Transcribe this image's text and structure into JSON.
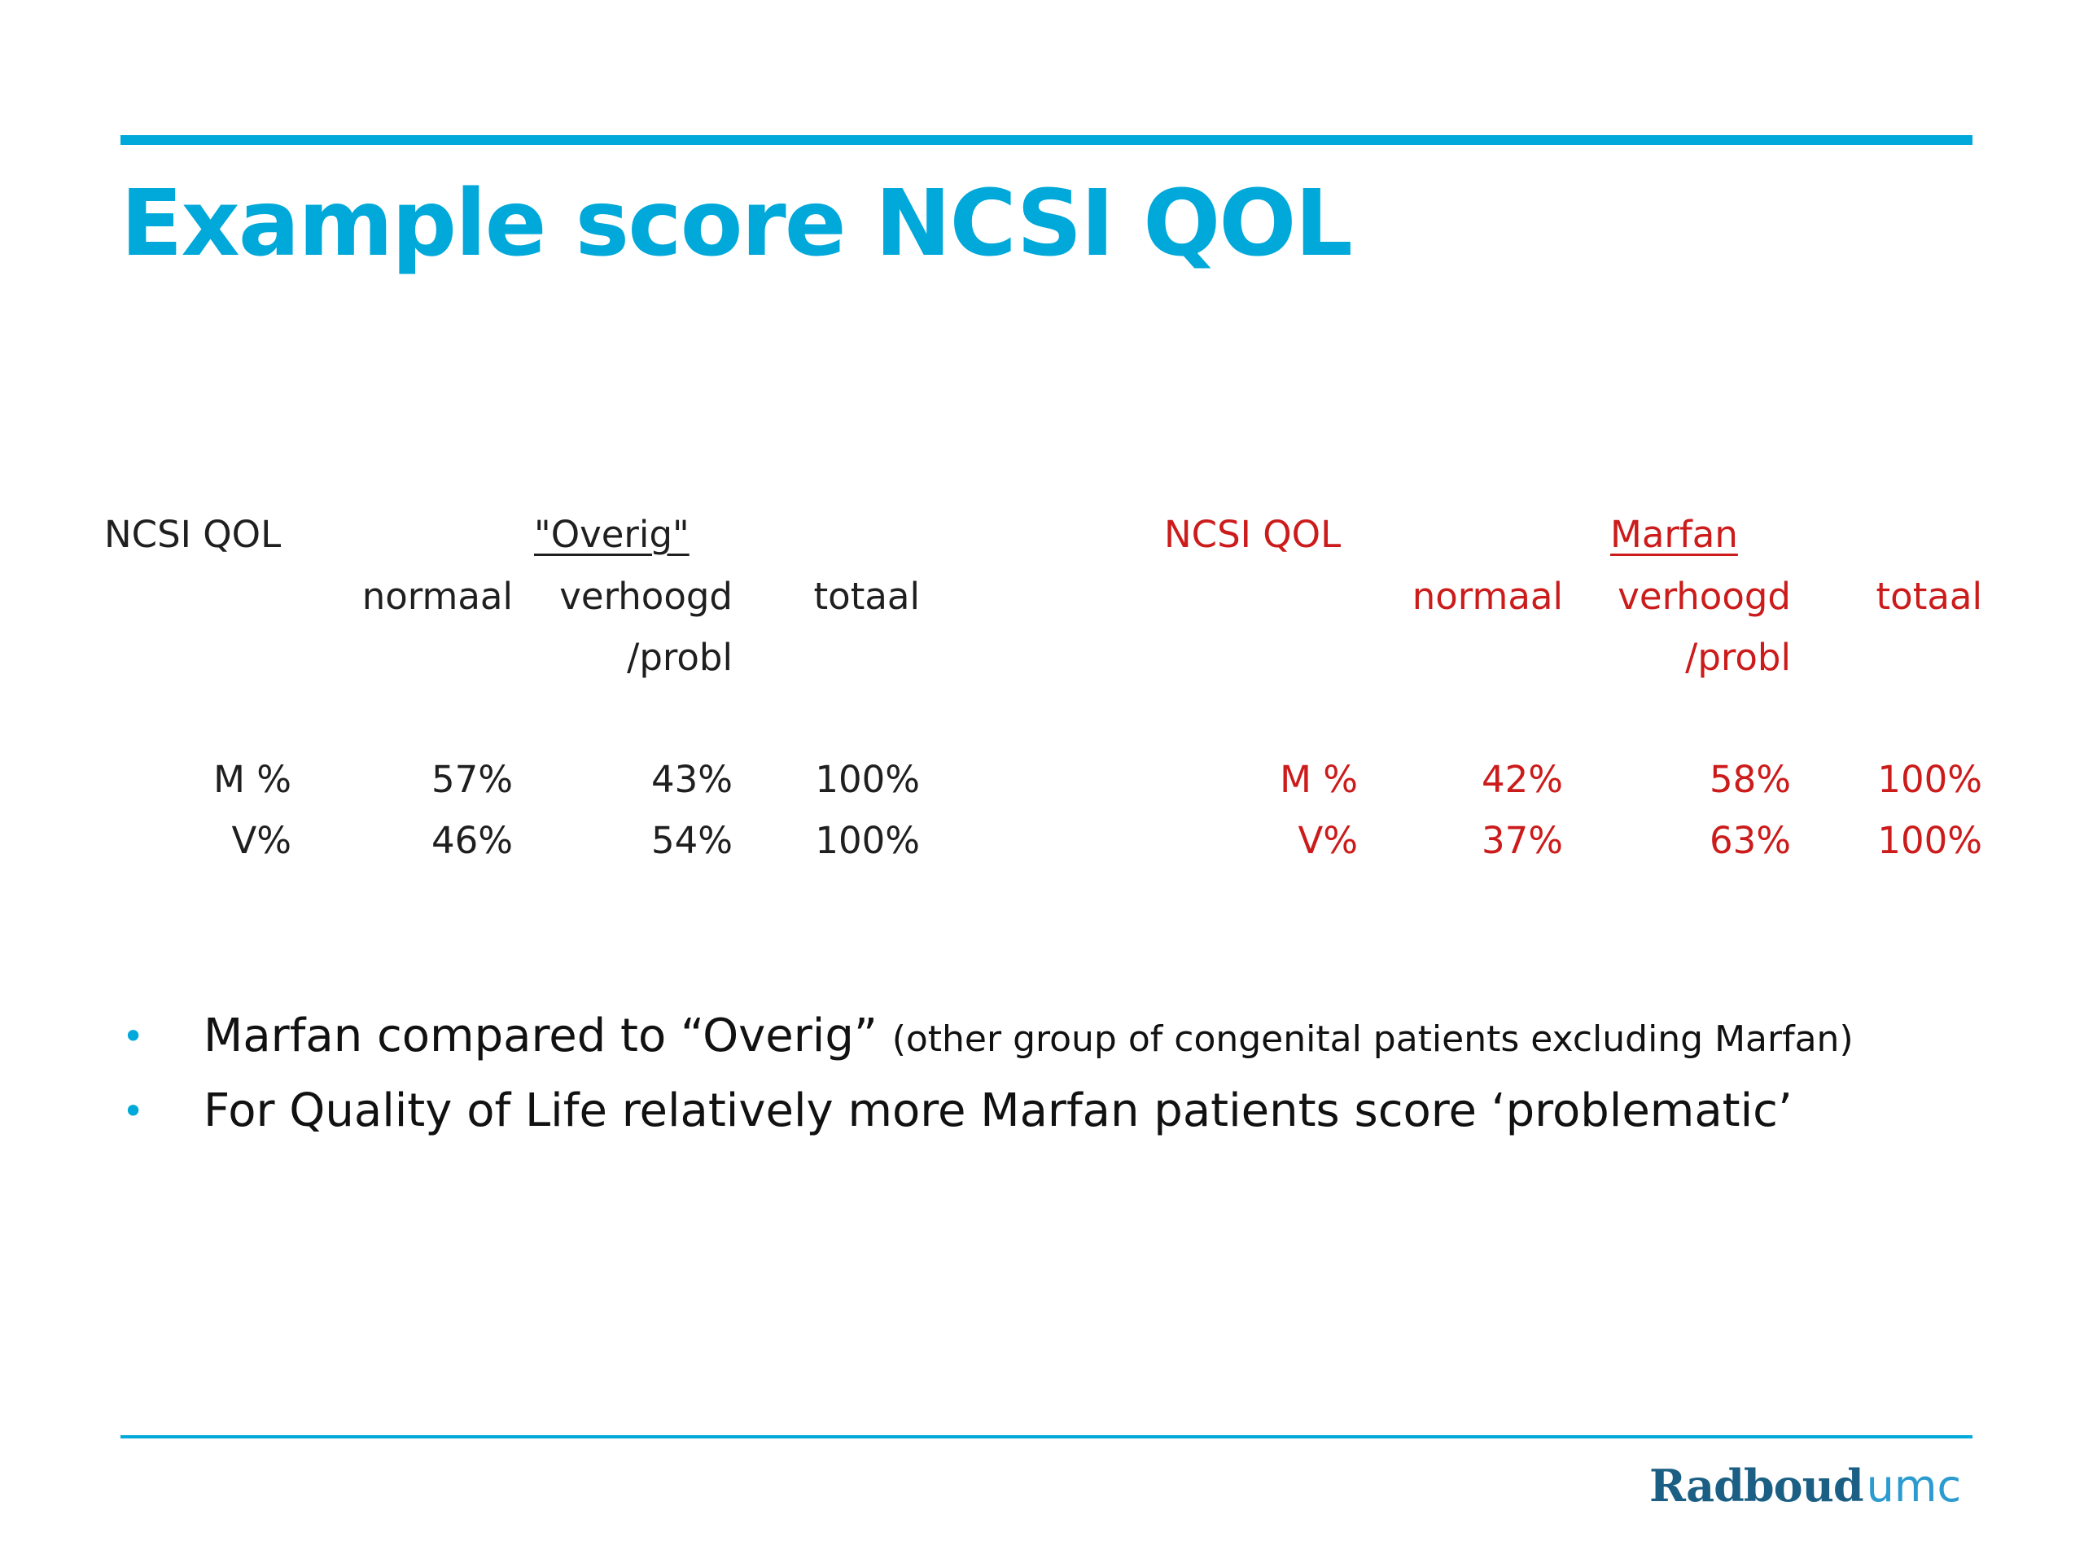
{
  "title": "Example score NCSI QOL",
  "colors": {
    "accent": "#00a9d9",
    "left_table": "#1f1f1f",
    "right_table": "#cc1b1b",
    "logo_primary": "#1b5f84",
    "logo_secondary": "#2b9bd0"
  },
  "left_table": {
    "label": "NCSI QOL",
    "group": "\"Overig\"",
    "col_normaal": "normaal",
    "col_verhoogd": "verhoogd",
    "col_verhoogd_2": "/probl",
    "col_totaal": "totaal",
    "rows": [
      {
        "label": "M %",
        "normaal": "57%",
        "verhoogd": "43%",
        "totaal": "100%"
      },
      {
        "label": "V%",
        "normaal": "46%",
        "verhoogd": "54%",
        "totaal": "100%"
      }
    ]
  },
  "right_table": {
    "label": "NCSI QOL",
    "group": "Marfan",
    "col_normaal": "normaal",
    "col_verhoogd": "verhoogd",
    "col_verhoogd_2": "/probl",
    "col_totaal": "totaal",
    "rows": [
      {
        "label": "M %",
        "normaal": "42%",
        "verhoogd": "58%",
        "totaal": "100%"
      },
      {
        "label": "V%",
        "normaal": "37%",
        "verhoogd": "63%",
        "totaal": "100%"
      }
    ]
  },
  "bullets": [
    {
      "main": "Marfan compared to “Overig”",
      "small": "(other group of congenital patients excluding Marfan)"
    },
    {
      "main": "For Quality of Life relatively more Marfan patients score ‘problematic’",
      "small": ""
    }
  ],
  "logo": {
    "part1": "Radboud",
    "part2": "umc"
  }
}
